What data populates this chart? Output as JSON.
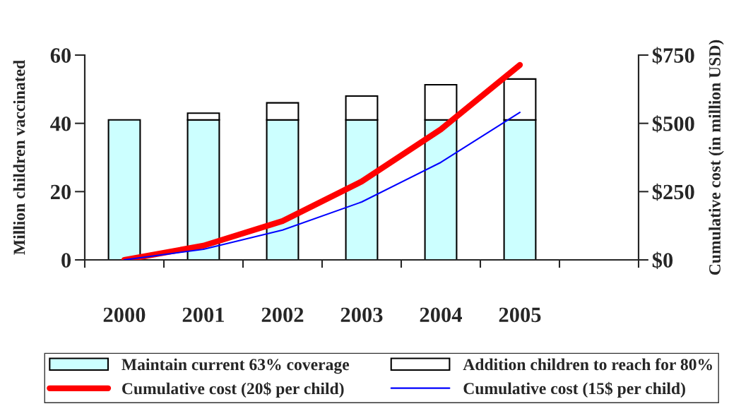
{
  "chart_data": {
    "type": "bar",
    "stacked": true,
    "categories": [
      "2000",
      "2001",
      "2002",
      "2003",
      "2004",
      "2005",
      null
    ],
    "series": [
      {
        "name": "Maintain current 63% coverage",
        "color": "#ccffff",
        "values": [
          41,
          41,
          41,
          41,
          41,
          41,
          null
        ]
      },
      {
        "name": "Addition children to reach for 80%",
        "color": "#ffffff",
        "values": [
          null,
          2,
          5,
          7,
          10.3,
          12,
          null
        ]
      },
      {
        "name": "Cumulative cost (20$ per child)",
        "type": "line",
        "axis": "y2",
        "color": "#ff0000",
        "values": [
          0,
          52,
          142,
          287,
          478,
          714,
          null
        ]
      },
      {
        "name": "Cumulative cost (15$ per child)",
        "type": "line",
        "axis": "y2",
        "color": "#0000ff",
        "values": [
          0,
          39,
          109,
          212,
          357,
          540,
          null
        ]
      }
    ],
    "ylabel": "Million children vaccinated",
    "y2label": "Cumulative cost (in million USD)",
    "ylim": [
      0,
      60
    ],
    "yticks": [
      0,
      20,
      40,
      60
    ],
    "y2lim": [
      0,
      750
    ],
    "y2ticks": [
      {
        "value": 0,
        "label": "$0"
      },
      {
        "value": 250,
        "label": "$250"
      },
      {
        "value": 500,
        "label": "$500"
      },
      {
        "value": 750,
        "label": "$750"
      }
    ],
    "grid": false,
    "legend": "bottom"
  }
}
